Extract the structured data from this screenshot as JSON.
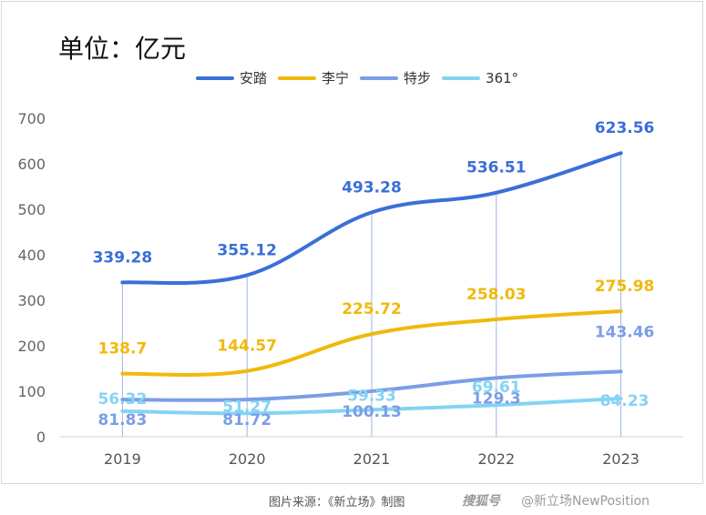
{
  "title": "单位：亿元",
  "footer": {
    "source": "图片来源：《新立场》制图",
    "watermark_logo": "搜狐号",
    "watermark_account": "@新立场NewPosition"
  },
  "chart_data": {
    "type": "line",
    "categories": [
      "2019",
      "2020",
      "2021",
      "2022",
      "2023"
    ],
    "ylim": [
      0,
      700
    ],
    "yticks": [
      0,
      100,
      200,
      300,
      400,
      500,
      600,
      700
    ],
    "grid": false,
    "legend_position": "top",
    "series": [
      {
        "name": "安踏",
        "color": "#3a6fd8",
        "values": [
          339.28,
          355.12,
          493.28,
          536.51,
          623.56
        ],
        "labels": [
          "339.28",
          "355.12",
          "493.28",
          "536.51",
          "623.56"
        ]
      },
      {
        "name": "李宁",
        "color": "#f0b90b",
        "values": [
          138.7,
          144.57,
          225.72,
          258.03,
          275.98
        ],
        "labels": [
          "138.7",
          "144.57",
          "225.72",
          "258.03",
          "275.98"
        ]
      },
      {
        "name": "特步",
        "color": "#7b9ee6",
        "values": [
          81.83,
          81.72,
          100.13,
          129.3,
          143.46
        ],
        "labels": [
          "81.83",
          "81.72",
          "100.13",
          "129.3",
          "143.46"
        ]
      },
      {
        "name": "361°",
        "color": "#85d3f3",
        "values": [
          56.32,
          51.27,
          59.33,
          69.61,
          84.23
        ],
        "labels": [
          "56.32",
          "51.27",
          "59.33",
          "69.61",
          "84.23"
        ]
      }
    ]
  }
}
